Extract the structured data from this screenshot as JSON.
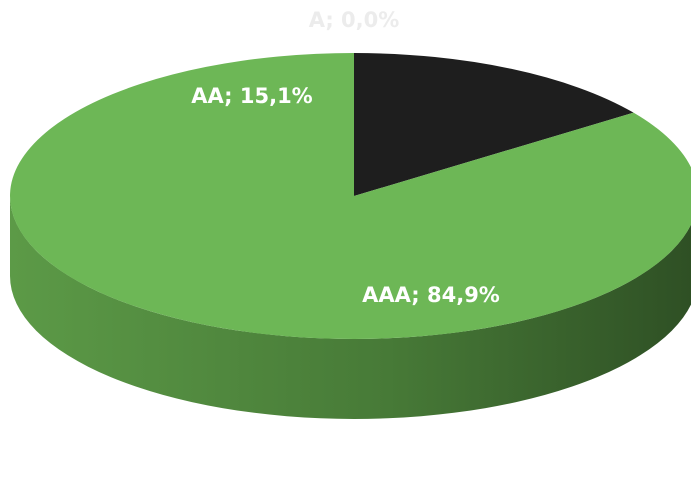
{
  "chart_data": {
    "type": "pie",
    "title": "",
    "style": "3d",
    "slices": [
      {
        "name": "A",
        "value": 0.0,
        "label": "A; 0,0%",
        "color": "#e6e6e6",
        "label_color": "#ececec"
      },
      {
        "name": "AA",
        "value": 15.1,
        "label": "AA; 15,1%",
        "color": "#1e1e1e",
        "label_color": "#ffffff"
      },
      {
        "name": "AAA",
        "value": 84.9,
        "label": "AAA; 84,9%",
        "color": "#6db756",
        "label_color": "#ffffff"
      }
    ],
    "side_colors": {
      "light": "#5c9a47",
      "dark": "#2e4f24"
    },
    "legend": "none"
  }
}
